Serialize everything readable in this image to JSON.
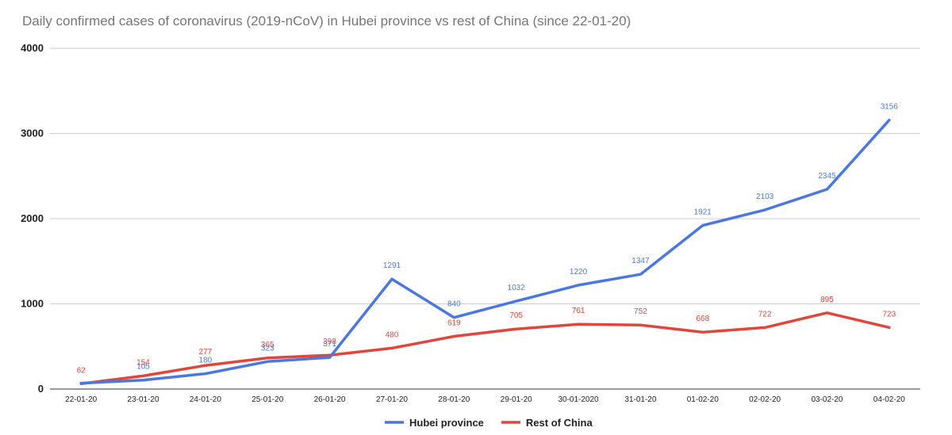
{
  "chart_data": {
    "type": "line",
    "title": "Daily confirmed cases of coronavirus (2019-nCoV) in Hubei province vs rest of China (since 22-01-20)",
    "xlabel": "",
    "ylabel": "",
    "ylim": [
      0,
      4000
    ],
    "yticks": [
      "0",
      "1000",
      "2000",
      "3000",
      "4000"
    ],
    "grid": true,
    "legend_position": "bottom",
    "categories": [
      "22-01-20",
      "23-01-20",
      "24-01-20",
      "25-01-20",
      "26-01-20",
      "27-01-20",
      "28-01-20",
      "29-01-20",
      "30-01-2020",
      "31-01-20",
      "01-02-20",
      "02-02-20",
      "03-02-20",
      "04-02-20"
    ],
    "series": [
      {
        "name": "Hubei province",
        "color": "#4a78e0",
        "values": [
          69,
          105,
          180,
          323,
          371,
          1291,
          840,
          1032,
          1220,
          1347,
          1921,
          2103,
          2345,
          3156
        ],
        "labels": [
          "",
          "105",
          "180",
          "323",
          "371",
          "1291",
          "840",
          "1032",
          "1220",
          "1347",
          "1921",
          "2103",
          "2345",
          "3156"
        ]
      },
      {
        "name": "Rest of China",
        "color": "#e0463c",
        "values": [
          62,
          154,
          277,
          365,
          398,
          480,
          619,
          705,
          761,
          752,
          668,
          722,
          895,
          723
        ],
        "labels": [
          "62",
          "154",
          "277",
          "365",
          "398",
          "480",
          "619",
          "705",
          "761",
          "752",
          "668",
          "722",
          "895",
          "723"
        ]
      }
    ]
  }
}
